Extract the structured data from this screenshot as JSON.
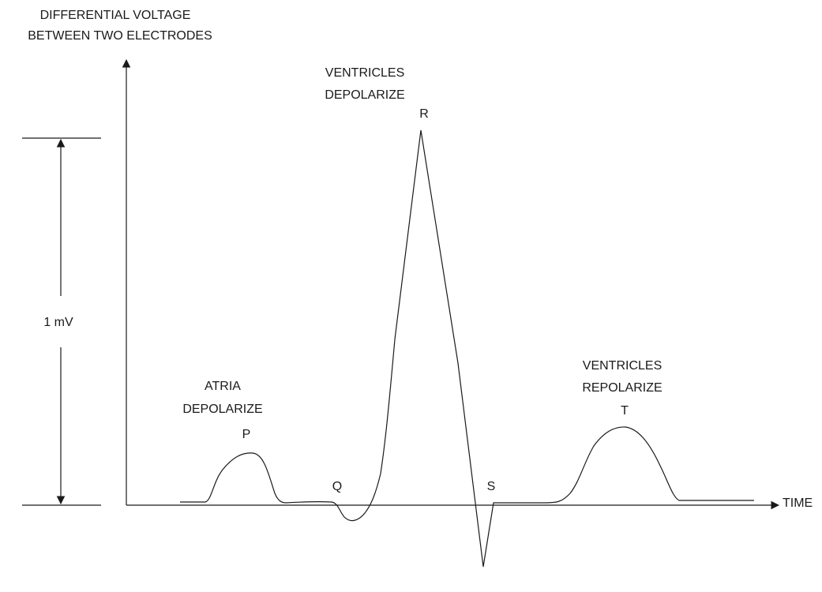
{
  "y_axis_label": [
    "DIFFERENTIAL VOLTAGE",
    "BETWEEN TWO ELECTRODES"
  ],
  "x_axis_label": "TIME",
  "scale_label": "1 mV",
  "waves": {
    "p": "P",
    "q": "Q",
    "r": "R",
    "s": "S",
    "t": "T"
  },
  "annotations": {
    "atria": [
      "ATRIA",
      "DEPOLARIZE"
    ],
    "ventricles_depolarize": [
      "VENTRICLES",
      "DEPOLARIZE"
    ],
    "ventricles_repolarize": [
      "VENTRICLES",
      "REPOLARIZE"
    ]
  }
}
